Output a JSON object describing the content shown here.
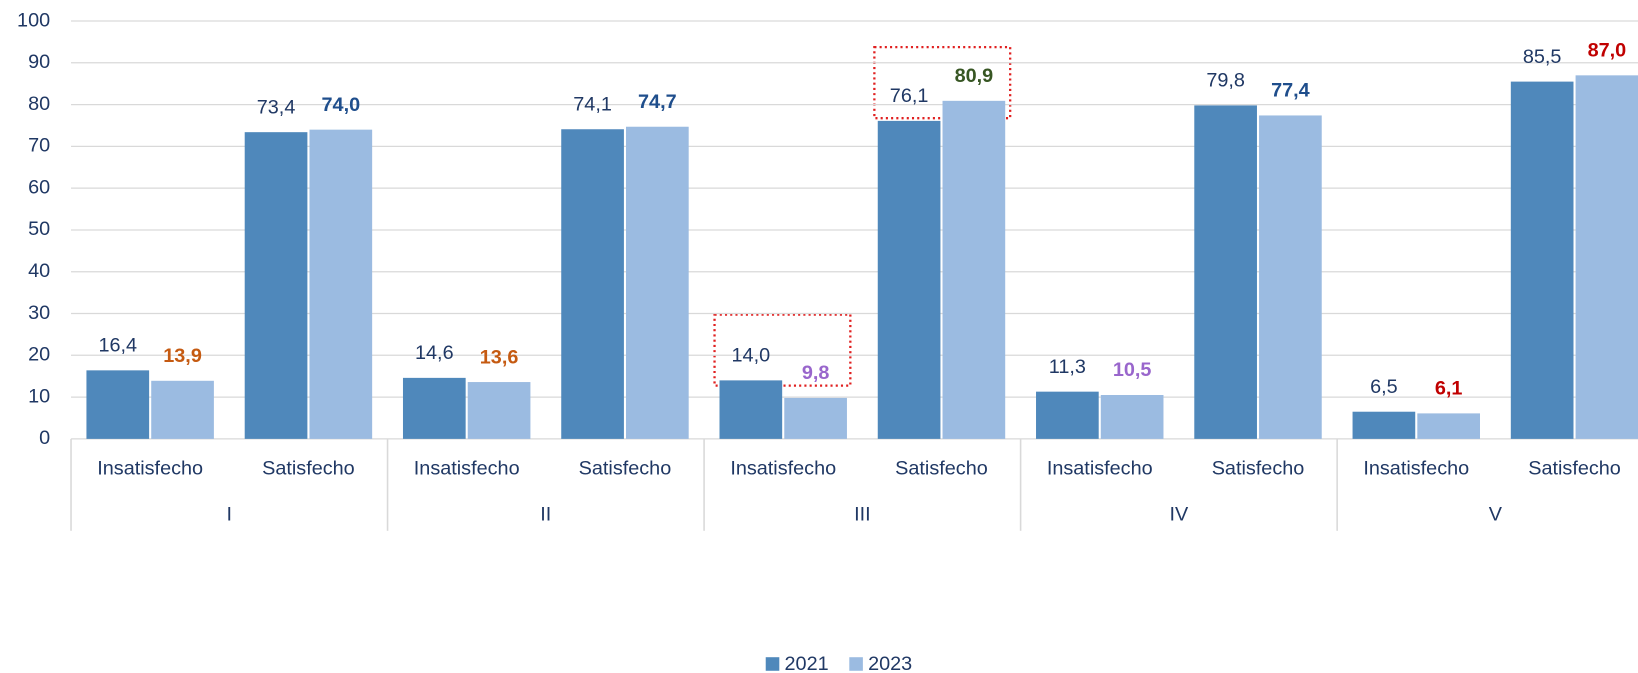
{
  "chart_data": {
    "type": "bar",
    "groups": [
      "I",
      "II",
      "III",
      "IV",
      "V"
    ],
    "categories": [
      "Insatisfecho",
      "Satisfecho",
      "Insatisfecho",
      "Satisfecho",
      "Insatisfecho",
      "Satisfecho",
      "Insatisfecho",
      "Satisfecho",
      "Insatisfecho",
      "Satisfecho"
    ],
    "series": [
      {
        "name": "2021",
        "color": "#4f88bb",
        "values": [
          16.4,
          73.4,
          14.6,
          74.1,
          14.0,
          76.1,
          11.3,
          79.8,
          6.5,
          85.5
        ],
        "value_labels": [
          "16,4",
          "73,4",
          "14,6",
          "74,1",
          "14,0",
          "76,1",
          "11,3",
          "79,8",
          "6,5",
          "85,5"
        ],
        "label_colors": [
          "#203864",
          "#203864",
          "#203864",
          "#203864",
          "#203864",
          "#203864",
          "#203864",
          "#203864",
          "#203864",
          "#203864"
        ],
        "label_bold": false
      },
      {
        "name": "2023",
        "color": "#9bbbe1",
        "values": [
          13.9,
          74.0,
          13.6,
          74.7,
          9.8,
          80.9,
          10.5,
          77.4,
          6.1,
          87.0
        ],
        "value_labels": [
          "13,9",
          "74,0",
          "13,6",
          "74,7",
          "9,8",
          "80,9",
          "10,5",
          "77,4",
          "6,1",
          "87,0"
        ],
        "label_colors": [
          "#c55a11",
          "#1f4e8c",
          "#c55a11",
          "#1f4e8c",
          "#9966cc",
          "#375623",
          "#9966cc",
          "#1f4e8c",
          "#c00000",
          "#c00000"
        ],
        "label_bold": true
      }
    ],
    "ylim": [
      0,
      100
    ],
    "yticks": [
      0,
      10,
      20,
      30,
      40,
      50,
      60,
      70,
      80,
      90,
      100
    ],
    "grid": true,
    "legend": "bottom"
  }
}
